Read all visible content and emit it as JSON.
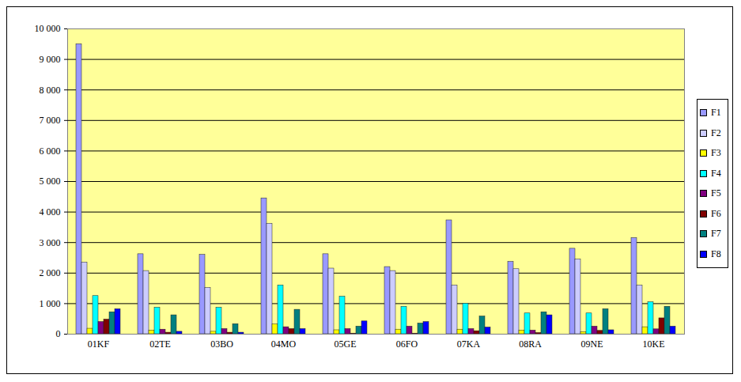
{
  "chart_data": {
    "type": "bar",
    "categories": [
      "01KF",
      "02TE",
      "03BO",
      "04MO",
      "05GE",
      "06FO",
      "07KA",
      "08RA",
      "09NE",
      "10KE"
    ],
    "series": [
      {
        "name": "F1",
        "color": "#9999FF",
        "values": [
          9500,
          2620,
          2600,
          4450,
          2620,
          2200,
          3730,
          2370,
          2800,
          3150
        ]
      },
      {
        "name": "F2",
        "color": "#CCCCFF",
        "values": [
          2350,
          2070,
          1520,
          3620,
          2150,
          2070,
          1600,
          2130,
          2450,
          1600
        ]
      },
      {
        "name": "F3",
        "color": "#FFFF00",
        "values": [
          180,
          120,
          80,
          320,
          130,
          150,
          150,
          120,
          70,
          230
        ]
      },
      {
        "name": "F4",
        "color": "#00FFFF",
        "values": [
          1250,
          870,
          870,
          1600,
          1230,
          900,
          1000,
          680,
          680,
          1050
        ]
      },
      {
        "name": "F5",
        "color": "#800080",
        "values": [
          400,
          150,
          170,
          230,
          170,
          250,
          170,
          120,
          250,
          160
        ]
      },
      {
        "name": "F6",
        "color": "#800000",
        "values": [
          480,
          50,
          50,
          170,
          20,
          20,
          100,
          40,
          110,
          520
        ]
      },
      {
        "name": "F7",
        "color": "#008080",
        "values": [
          720,
          620,
          330,
          800,
          250,
          350,
          580,
          720,
          820,
          900
        ]
      },
      {
        "name": "F8",
        "color": "#0000FF",
        "values": [
          820,
          80,
          50,
          170,
          420,
          400,
          220,
          620,
          130,
          250
        ]
      }
    ],
    "ylim": [
      0,
      10000
    ],
    "yticks": [
      0,
      {
        "value": 1000,
        "label": "1 000"
      },
      {
        "value": 2000,
        "label": "2 000"
      },
      {
        "value": 3000,
        "label": "3 000"
      },
      {
        "value": 4000,
        "label": "4 000"
      },
      {
        "value": 5000,
        "label": "5 000"
      },
      {
        "value": 6000,
        "label": "6 000"
      },
      {
        "value": 7000,
        "label": "7 000"
      },
      {
        "value": 8000,
        "label": "8 000"
      },
      {
        "value": 9000,
        "label": "9 000"
      },
      {
        "value": 10000,
        "label": "10 000"
      }
    ],
    "grid": true,
    "legend": "right"
  }
}
